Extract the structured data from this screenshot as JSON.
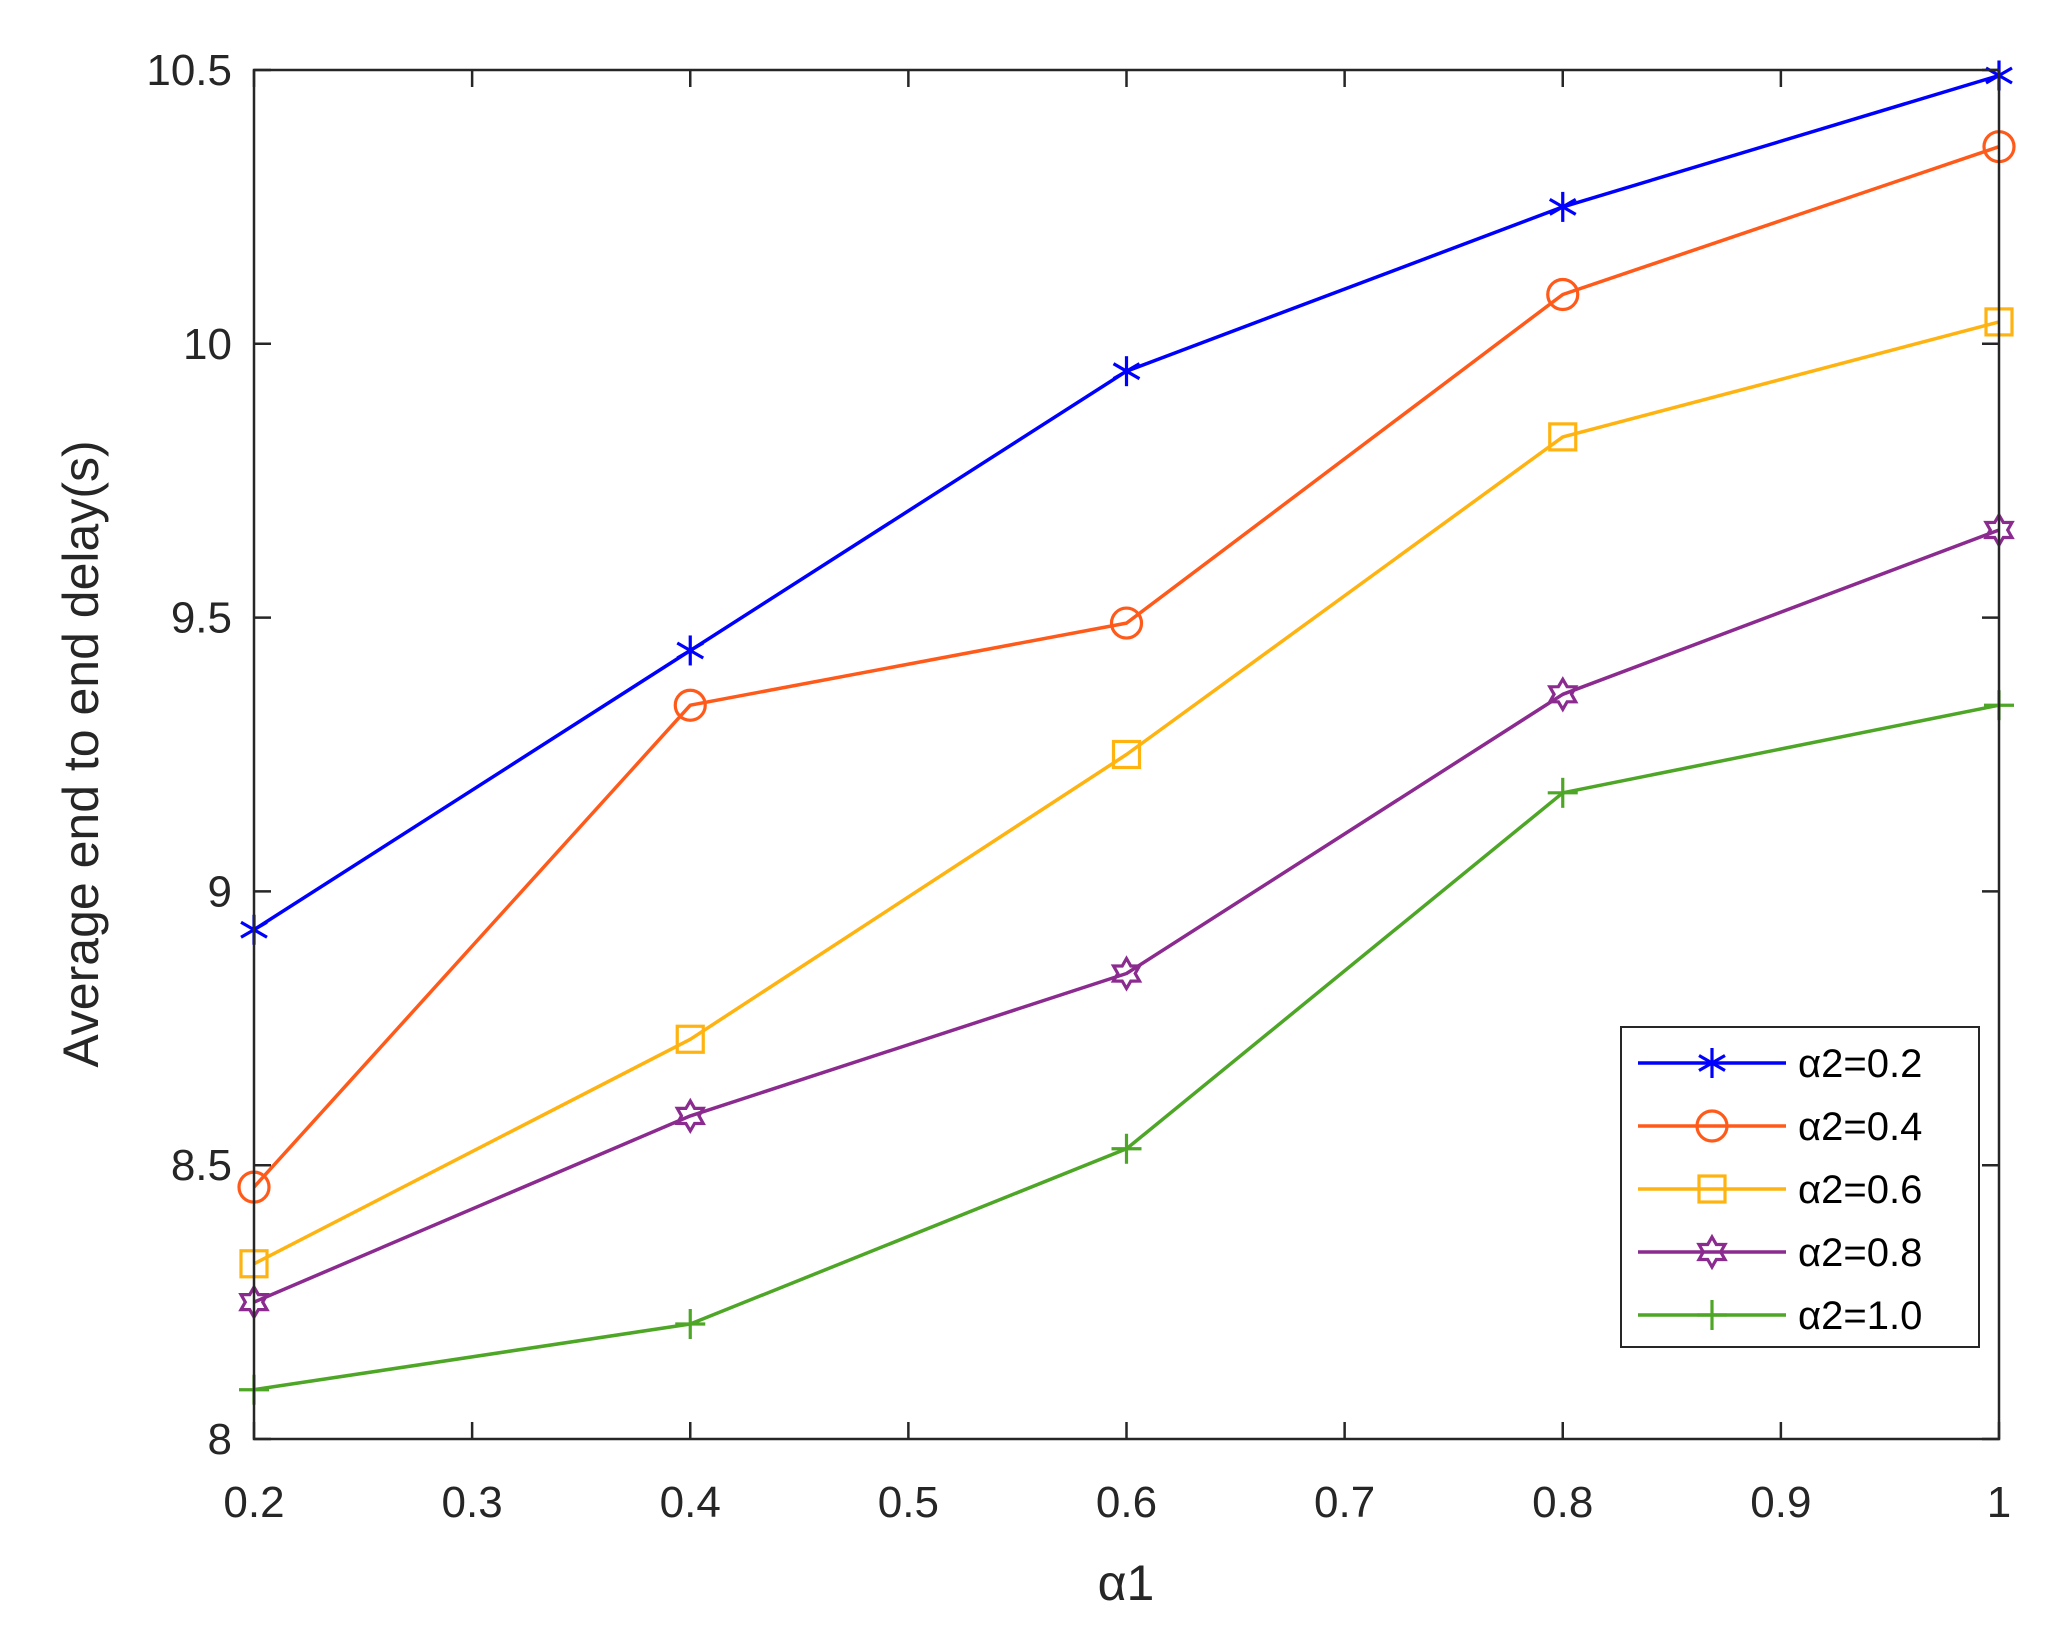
{
  "chart_data": {
    "type": "line",
    "title": "",
    "xlabel": "α1",
    "ylabel": "Average end to end delay(s)",
    "x": [
      0.2,
      0.4,
      0.6,
      0.8,
      1.0
    ],
    "xlim": [
      0.2,
      1.0
    ],
    "ylim": [
      8.0,
      10.5
    ],
    "xticks": [
      0.2,
      0.3,
      0.4,
      0.5,
      0.6,
      0.7,
      0.8,
      0.9,
      1.0
    ],
    "xtick_labels": [
      "0.2",
      "0.3",
      "0.4",
      "0.5",
      "0.6",
      "0.7",
      "0.8",
      "0.9",
      "1"
    ],
    "yticks": [
      8.0,
      8.5,
      9.0,
      9.5,
      10.0,
      10.5
    ],
    "ytick_labels": [
      "8",
      "8.5",
      "9",
      "9.5",
      "10",
      "10.5"
    ],
    "grid": false,
    "legend_position": "bottom-right",
    "series": [
      {
        "name": "α2=0.2",
        "values": [
          8.93,
          9.44,
          9.95,
          10.25,
          10.49
        ],
        "color": "#0000ff",
        "marker": "asterisk"
      },
      {
        "name": "α2=0.4",
        "values": [
          8.46,
          9.34,
          9.49,
          10.09,
          10.36
        ],
        "color": "#ff5a1a",
        "marker": "circle"
      },
      {
        "name": "α2=0.6",
        "values": [
          8.32,
          8.73,
          9.25,
          9.83,
          10.04
        ],
        "color": "#ffb310",
        "marker": "square"
      },
      {
        "name": "α2=0.8",
        "values": [
          8.25,
          8.59,
          8.85,
          9.36,
          9.66
        ],
        "color": "#8b2a8f",
        "marker": "hexagram"
      },
      {
        "name": "α2=1.0",
        "values": [
          8.09,
          8.21,
          8.53,
          9.18,
          9.34
        ],
        "color": "#4ea626",
        "marker": "plus"
      }
    ]
  }
}
